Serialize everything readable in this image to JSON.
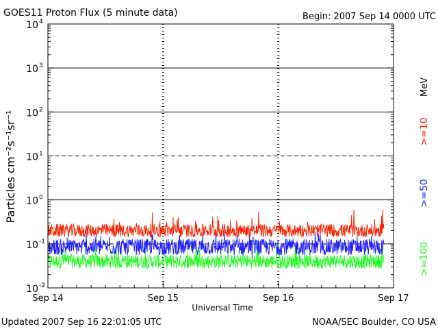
{
  "header": {
    "title": "GOES11 Proton Flux (5 minute data)",
    "begin": "Begin: 2007 Sep 14 0000 UTC"
  },
  "footer": {
    "updated": "Updated 2007 Sep 16 22:01:05 UTC",
    "credit": "NOAA/SEC Boulder, CO USA"
  },
  "legend": {
    "unit": "MeV",
    "entries": [
      {
        "label": ">=10",
        "color": "#ff2000"
      },
      {
        "label": ">=50",
        "color": "#2020ff"
      },
      {
        "label": ">=100",
        "color": "#20ff20"
      }
    ]
  },
  "chart_data": {
    "type": "line",
    "title": "GOES11 Proton Flux (5 minute data)",
    "xlabel": "Universal Time",
    "ylabel": "Particles cm⁻²s⁻¹sr⁻¹",
    "yscale": "log",
    "ylim": [
      0.01,
      10000
    ],
    "xlim": [
      "2007-09-14 00:00",
      "2007-09-17 00:00"
    ],
    "x_ticks": [
      "Sep 14",
      "Sep 15",
      "Sep 16",
      "Sep 17"
    ],
    "y_ticks": [
      {
        "value": 0.01,
        "base": "10",
        "exp": "-2"
      },
      {
        "value": 0.1,
        "base": "10",
        "exp": "-1"
      },
      {
        "value": 1,
        "base": "10",
        "exp": "0"
      },
      {
        "value": 10,
        "base": "10",
        "exp": "1"
      },
      {
        "value": 100,
        "base": "10",
        "exp": "2"
      },
      {
        "value": 1000,
        "base": "10",
        "exp": "3"
      },
      {
        "value": 10000,
        "base": "10",
        "exp": "4"
      }
    ],
    "reference_lines": [
      {
        "value": 1000,
        "style": "solid"
      },
      {
        "value": 100,
        "style": "solid"
      },
      {
        "value": 10,
        "style": "dashed"
      },
      {
        "value": 1,
        "style": "solid"
      },
      {
        "value": 0.1,
        "style": "dashed"
      }
    ],
    "day_separators": [
      "2007-09-15 00:00",
      "2007-09-16 00:00"
    ],
    "series": [
      {
        "name": ">=10",
        "color": "#ff2000",
        "typical": 0.2,
        "min": 0.13,
        "max": 0.6
      },
      {
        "name": ">=50",
        "color": "#2020ff",
        "typical": 0.085,
        "min": 0.05,
        "max": 0.2
      },
      {
        "name": ">=100",
        "color": "#20ff20",
        "typical": 0.04,
        "min": 0.025,
        "max": 0.11
      }
    ],
    "data_end": "2007-09-16 22:00"
  }
}
